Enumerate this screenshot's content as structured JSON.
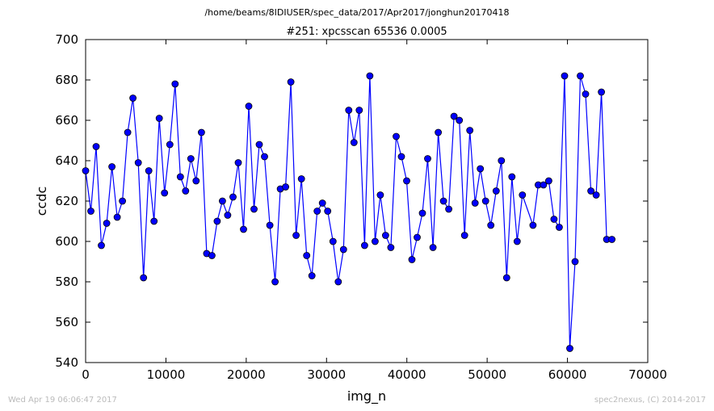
{
  "header": {
    "path": "/home/beams/8IDIUSER/spec_data/2017/Apr2017/jonghun20170418"
  },
  "footer": {
    "timestamp": "Wed Apr 19 06:06:47 2017",
    "credit": "spec2nexus, (C) 2014-2017"
  },
  "colors": {
    "series": "#0000ff",
    "marker_fill": "#0000ff",
    "axes": "#000000"
  },
  "chart_data": {
    "type": "line",
    "title": "#251: xpcsscan 65536 0.0005",
    "xlabel": "img_n",
    "ylabel": "ccdc",
    "xlim": [
      0,
      70000
    ],
    "ylim": [
      540,
      700
    ],
    "xticks": [
      "0",
      "10000",
      "20000",
      "30000",
      "40000",
      "50000",
      "60000",
      "70000"
    ],
    "yticks": [
      "540",
      "560",
      "580",
      "600",
      "620",
      "640",
      "660",
      "680",
      "700"
    ],
    "grid": false,
    "legend": "none",
    "series": [
      {
        "x": [
          0,
          655,
          1311,
          1966,
          2621,
          3277,
          3932,
          4588,
          5243,
          5898,
          6554,
          7209,
          7864,
          8520,
          9175,
          9830,
          10486,
          11141,
          11796,
          12452,
          13107,
          13763,
          14418,
          15073,
          15729,
          16384,
          17039,
          17695,
          18350,
          19005,
          19661,
          20316,
          20972,
          21627,
          22282,
          22938,
          23593,
          24248,
          24904,
          25559,
          26214,
          26870,
          27525,
          28180,
          28836,
          29491,
          30147,
          30802,
          31457,
          32113,
          32768,
          33423,
          34079,
          34734,
          35389,
          36045,
          36700,
          37356,
          38011,
          38666,
          39322,
          39977,
          40632,
          41288,
          41943,
          42598,
          43254,
          43909,
          44565,
          45220,
          45875,
          46531,
          47186,
          47841,
          48497,
          49152,
          49807,
          50463,
          51118,
          51773,
          52429,
          53084,
          53740,
          54395,
          55705,
          56360,
          57016,
          57672,
          58327,
          58982,
          59638,
          60293,
          60948,
          61604,
          62259,
          62915,
          63570,
          64225,
          64881,
          65536
        ],
        "y": [
          635,
          615,
          647,
          598,
          609,
          637,
          612,
          620,
          654,
          671,
          639,
          582,
          635,
          610,
          661,
          624,
          648,
          678,
          632,
          625,
          641,
          630,
          654,
          594,
          593,
          610,
          620,
          613,
          622,
          639,
          606,
          667,
          616,
          648,
          642,
          608,
          580,
          626,
          627,
          679,
          603,
          631,
          593,
          583,
          615,
          619,
          615,
          600,
          580,
          596,
          665,
          649,
          665,
          598,
          682,
          600,
          623,
          603,
          597,
          652,
          642,
          630,
          591,
          602,
          614,
          641,
          597,
          654,
          620,
          616,
          662,
          660,
          603,
          655,
          619,
          636,
          620,
          608,
          625,
          640,
          582,
          632,
          600,
          623,
          608,
          628,
          628,
          630,
          611,
          607,
          682,
          547,
          590,
          682,
          673,
          625,
          623,
          674,
          601,
          601
        ]
      }
    ]
  }
}
